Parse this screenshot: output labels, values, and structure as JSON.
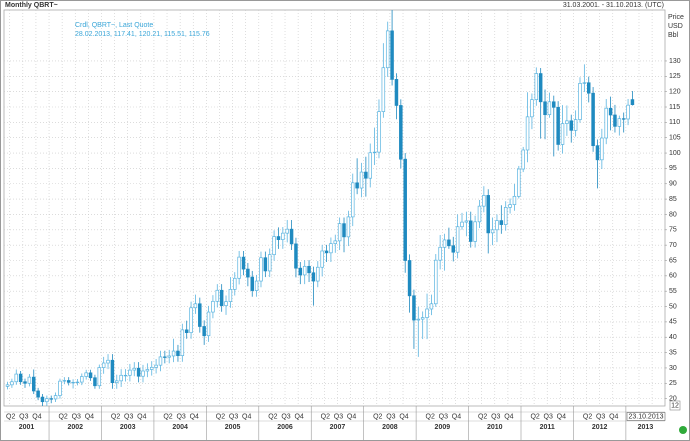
{
  "chart_data": {
    "type": "candlestick",
    "title": "Monthly QBRT~",
    "date_range": "31.03.2001. - 31.10.2013. (UTC)",
    "legend_lines": [
      "Crdl, QBRT~, Last Quote",
      "28.02.2013, 117.41, 120.21, 115.51, 115.76"
    ],
    "y_axis_label": [
      "Price",
      "USD",
      "Bbl"
    ],
    "categories": [
      null,
      null,
      null,
      null,
      null,
      null,
      null,
      null,
      null,
      null,
      null,
      null,
      null,
      null,
      null,
      null,
      null,
      null,
      null,
      null,
      null,
      null,
      null,
      null,
      null,
      null,
      null,
      null,
      null,
      null,
      null,
      null,
      null,
      null,
      null,
      null,
      null,
      null,
      null,
      null,
      null,
      null,
      null,
      null,
      null,
      null,
      null,
      null,
      null,
      null,
      null,
      null,
      null,
      null,
      null,
      null,
      null,
      null,
      null,
      null,
      null,
      null,
      null,
      null,
      null,
      null,
      null,
      null,
      null,
      null,
      null,
      null,
      null,
      null,
      null,
      null,
      null,
      null,
      null,
      null,
      null,
      null,
      null,
      null,
      null,
      null,
      null,
      null,
      null,
      null,
      null,
      null,
      null,
      null,
      null,
      null,
      null,
      null,
      null,
      null,
      null,
      null,
      null,
      null,
      null,
      null,
      null,
      null,
      null,
      null,
      null,
      null,
      null,
      null,
      null,
      null,
      null,
      null,
      null,
      null,
      null,
      null,
      null,
      null,
      null,
      null,
      null,
      null,
      null,
      null,
      null,
      null,
      null,
      null,
      null,
      null,
      null,
      null,
      null,
      null,
      null,
      null,
      null,
      null
    ],
    "open": [
      24,
      24.5,
      25.5,
      28,
      25.5,
      25,
      27,
      22.5,
      20.5,
      19,
      20,
      19.9,
      21,
      25.7,
      25.9,
      25.3,
      25.3,
      25.4,
      27.2,
      28.4,
      26.8,
      24.2,
      30.1,
      31.6,
      32.5,
      25.2,
      25.8,
      27.6,
      27.6,
      29.3,
      29.9,
      27.3,
      29,
      29.5,
      30.2,
      30.9,
      33.6,
      33.5,
      33.9,
      35.5,
      34,
      42.4,
      41.5,
      49.6,
      50.9,
      43.5,
      40.5,
      48.2,
      51.7,
      55.3,
      50.3,
      51.6,
      55.6,
      59.2,
      66.1,
      62.2,
      59.6,
      55.2,
      58.3,
      65.9,
      61.6,
      66.9,
      72.8,
      71.8,
      73.9,
      75.2,
      70.4,
      62.5,
      60.3,
      63.1,
      61,
      58.3,
      62.8,
      68.1,
      67.5,
      70.5,
      71.4,
      77,
      72.7,
      79.2,
      90.3,
      88.6,
      93.8,
      91.8,
      100.1,
      100.3,
      113.5,
      127.8,
      139.8,
      124,
      115.5,
      98,
      65,
      53.5,
      45.6,
      45.9,
      46.4,
      49.2,
      50.9,
      65.1,
      69.3,
      71.7,
      69.8,
      67.7,
      76,
      77.5,
      77.9,
      71.2,
      77.6,
      82.7,
      86.2,
      74,
      75,
      78,
      76.7,
      82.3,
      83.2,
      85.9,
      94.8,
      101,
      111.8,
      117.4,
      125.9,
      116.7,
      112.5,
      116.7,
      114.9,
      102.8,
      109.6,
      110.5,
      107.4,
      110.9,
      122.7,
      122.9,
      119.5,
      102.4,
      97.8,
      104.9,
      114.6,
      112.4,
      108.7,
      111.2,
      111.1,
      117.41
    ],
    "high": [
      25.5,
      26.5,
      29.5,
      29,
      26.5,
      28,
      29.5,
      23.5,
      21.5,
      21,
      21,
      22,
      26.5,
      27,
      27,
      26.3,
      26.4,
      28.2,
      29.4,
      29.4,
      27.8,
      31.1,
      33.6,
      34.5,
      34.5,
      27.8,
      29.6,
      29.6,
      31.3,
      31.9,
      31.9,
      31,
      31.5,
      32.2,
      32.9,
      35.6,
      35.6,
      35.9,
      39.5,
      37.5,
      44.4,
      45.4,
      51.6,
      53.9,
      52.9,
      45.5,
      50.2,
      53.7,
      57.3,
      57.3,
      53.6,
      59.6,
      61.2,
      68.1,
      68.1,
      64.2,
      61.6,
      60.3,
      67.9,
      67.9,
      68.9,
      74.8,
      75.8,
      75.9,
      78.2,
      78.2,
      72.4,
      64.5,
      65.1,
      65.1,
      63,
      64.8,
      70.1,
      70.1,
      72.5,
      73.4,
      79,
      79,
      81.2,
      93.3,
      98.3,
      96.8,
      98.8,
      103.1,
      108.3,
      117.5,
      135.8,
      142.8,
      147,
      126,
      117.5,
      100,
      67,
      55.5,
      49.9,
      48.4,
      54.2,
      53.9,
      67.1,
      73.3,
      73.7,
      75.7,
      72.7,
      80,
      80.5,
      80.9,
      80.9,
      79.6,
      84.7,
      89.2,
      88.2,
      79,
      80,
      83,
      84.3,
      85.2,
      89.9,
      95.8,
      102,
      119.8,
      119.4,
      127.9,
      127.7,
      120.7,
      119.7,
      118.7,
      116.9,
      115.6,
      115.5,
      112.5,
      113.9,
      124.7,
      128.9,
      124.9,
      121.5,
      104.4,
      107.9,
      117.6,
      118.4,
      115.7,
      112.2,
      113.2,
      117.6,
      120.21
    ],
    "low": [
      23,
      23.5,
      24.5,
      24.5,
      23.5,
      24,
      21.5,
      19.5,
      17,
      17.5,
      18.5,
      18.9,
      20,
      24.7,
      24.3,
      23.3,
      24.3,
      24.4,
      26.2,
      25.8,
      23.2,
      23.2,
      28.1,
      29.6,
      23.2,
      23.2,
      23.8,
      25.6,
      25.6,
      27.3,
      25.3,
      25.3,
      27,
      27.5,
      28.2,
      28.9,
      31.5,
      31.5,
      31.9,
      32,
      32,
      39.5,
      39.5,
      47.6,
      41.5,
      37.5,
      38.5,
      46.2,
      49.7,
      48.3,
      47.3,
      49.6,
      53.6,
      57.2,
      60.2,
      56.6,
      53.2,
      53.2,
      56.3,
      59.6,
      59.6,
      64.9,
      68.8,
      68.8,
      70.9,
      68.4,
      59.5,
      57.3,
      57.3,
      58,
      50.3,
      56.3,
      59.8,
      64.5,
      64.5,
      67.5,
      68.4,
      67.7,
      69.7,
      76.2,
      86.6,
      85.6,
      85.8,
      88.8,
      96.1,
      98.3,
      111.5,
      124.8,
      122,
      111,
      95,
      61,
      48,
      36.2,
      33.6,
      39.4,
      39.4,
      47.2,
      49.9,
      62.1,
      61.7,
      68.8,
      64.7,
      65.7,
      75,
      72.9,
      69.2,
      69.2,
      75.6,
      80.7,
      67.3,
      70,
      71,
      73.7,
      74.7,
      80.3,
      81.2,
      85.2,
      93.8,
      97,
      107.8,
      115.4,
      104.7,
      104.5,
      111.5,
      98.9,
      100.8,
      99.8,
      105.6,
      103.4,
      105.4,
      109.9,
      119.9,
      116.5,
      100.4,
      88.5,
      94.8,
      102.9,
      107.4,
      106.7,
      105.7,
      106.7,
      109.1,
      115.51
    ],
    "close": [
      24.5,
      25.5,
      28,
      25.5,
      25,
      27,
      22.5,
      20.5,
      19,
      20,
      19.9,
      21,
      25.7,
      25.9,
      25.3,
      25.3,
      25.4,
      27.2,
      28.4,
      26.8,
      24.2,
      30.1,
      31.6,
      32.5,
      25.2,
      25.8,
      27.6,
      27.6,
      29.3,
      29.9,
      27.3,
      29,
      29.5,
      30.2,
      30.9,
      33.6,
      33.5,
      33.9,
      35.5,
      34,
      42.4,
      41.5,
      49.6,
      50.9,
      43.5,
      40.5,
      48.2,
      51.7,
      55.3,
      50.3,
      51.6,
      55.6,
      59.2,
      66.1,
      62.2,
      59.6,
      55.2,
      58.3,
      65.9,
      61.6,
      66.9,
      72.8,
      71.8,
      73.9,
      75.2,
      70.4,
      62.5,
      60.3,
      63.1,
      61,
      58.3,
      62.8,
      68.1,
      67.5,
      70.5,
      71.4,
      77,
      72.7,
      79.2,
      90.3,
      88.6,
      93.8,
      91.8,
      100.1,
      100.3,
      113.5,
      127.8,
      139.8,
      124,
      115.5,
      98,
      65,
      53.5,
      45.6,
      45.9,
      46.4,
      49.2,
      50.9,
      65.1,
      69.3,
      71.7,
      69.8,
      67.7,
      76,
      77.5,
      77.9,
      71.2,
      77.6,
      82.7,
      86.2,
      74,
      75,
      78,
      76.7,
      82.3,
      83.2,
      85.9,
      94.8,
      101,
      111.8,
      117.4,
      125.9,
      116.7,
      112.5,
      116.7,
      114.9,
      102.8,
      109.6,
      110.5,
      107.4,
      110.9,
      122.7,
      122.9,
      119.5,
      102.4,
      97.8,
      104.9,
      114.6,
      112.4,
      108.7,
      111.2,
      111.1,
      115.6,
      115.76
    ],
    "color_up": "#5ab4e0",
    "color_down": "#1f8ac0",
    "ylim": [
      17.6,
      146.6
    ],
    "yticks": [
      20,
      25,
      30,
      35,
      40,
      45,
      50,
      55,
      60,
      65,
      70,
      75,
      80,
      85,
      90,
      95,
      100,
      105,
      110,
      115,
      120,
      125,
      130
    ],
    "grid": true,
    "quarter_labels": [
      "Q2",
      "Q3",
      "Q4"
    ],
    "years": [
      "2001",
      "2002",
      "2003",
      "2004",
      "2005",
      "2006",
      "2007",
      "2008",
      "2009",
      "2010",
      "2011",
      "2012",
      "2013"
    ],
    "cursor_date": "23.10.2013",
    "corner_label": "12"
  }
}
